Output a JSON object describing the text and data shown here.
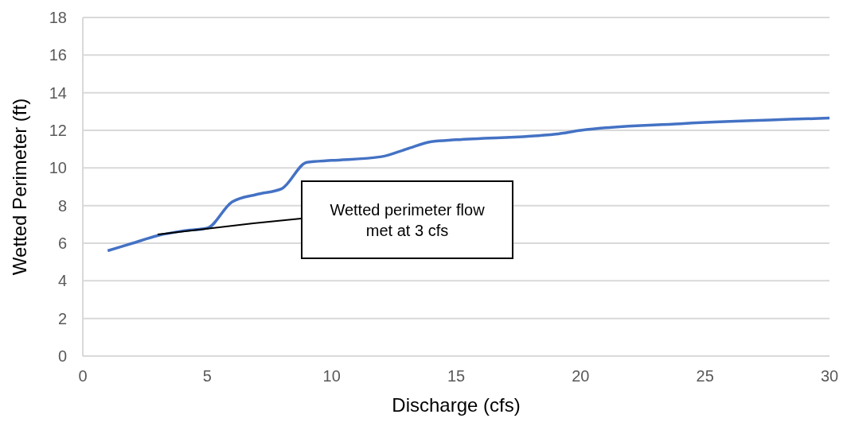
{
  "chart_data": {
    "type": "line",
    "xlabel": "Discharge (cfs)",
    "ylabel": "Wetted Perimeter (ft)",
    "x": [
      1,
      2,
      3,
      4,
      5,
      6,
      7,
      8,
      9,
      10,
      12,
      13,
      14,
      15,
      19,
      20,
      24,
      30
    ],
    "series": [
      {
        "color": "#4472c4",
        "values": [
          5.6,
          6.0,
          6.4,
          6.65,
          6.8,
          8.2,
          8.6,
          8.9,
          10.3,
          10.4,
          10.6,
          11.0,
          11.4,
          11.5,
          11.8,
          12.0,
          12.35,
          12.65
        ]
      }
    ],
    "xlim": [
      0,
      30
    ],
    "xticks": [
      0,
      5,
      10,
      15,
      20,
      25,
      30
    ],
    "ylim": [
      0,
      18
    ],
    "yticks": [
      0,
      2,
      4,
      6,
      8,
      10,
      12,
      14,
      16,
      18
    ],
    "grid": "y",
    "marker": "none",
    "line_style": "solid",
    "annotations": [
      "Wetted perimeter flow met at 3 cfs"
    ]
  }
}
